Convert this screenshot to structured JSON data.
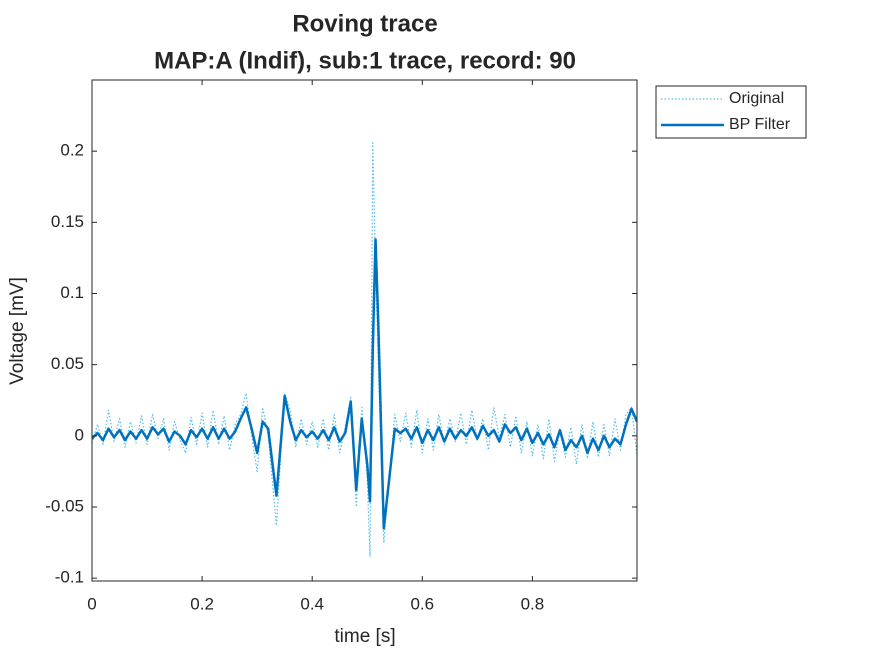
{
  "chart_data": {
    "type": "line",
    "title": "Roving trace",
    "subtitle": "MAP:A (Indif), sub:1 trace, record: 90",
    "x_label": "time [s]",
    "y_label": "Voltage [mV]",
    "xlim": [
      0,
      0.99
    ],
    "ylim": [
      -0.102,
      0.25
    ],
    "xticks": [
      0,
      0.2,
      0.4,
      0.6,
      0.8
    ],
    "yticks": [
      -0.1,
      -0.05,
      0,
      0.05,
      0.1,
      0.15,
      0.2
    ],
    "legend": "outside-top-right",
    "x": [
      0,
      0.01,
      0.02,
      0.03,
      0.04,
      0.05,
      0.06,
      0.07,
      0.08,
      0.09,
      0.1,
      0.11,
      0.12,
      0.13,
      0.14,
      0.15,
      0.16,
      0.17,
      0.18,
      0.19,
      0.2,
      0.21,
      0.22,
      0.23,
      0.24,
      0.25,
      0.26,
      0.27,
      0.28,
      0.29,
      0.3,
      0.31,
      0.32,
      0.335,
      0.35,
      0.36,
      0.37,
      0.38,
      0.39,
      0.4,
      0.41,
      0.42,
      0.43,
      0.44,
      0.45,
      0.46,
      0.47,
      0.48,
      0.49,
      0.5,
      0.505,
      0.51,
      0.515,
      0.52,
      0.53,
      0.54,
      0.55,
      0.56,
      0.57,
      0.58,
      0.59,
      0.6,
      0.61,
      0.62,
      0.63,
      0.64,
      0.65,
      0.66,
      0.67,
      0.68,
      0.69,
      0.7,
      0.71,
      0.72,
      0.73,
      0.74,
      0.75,
      0.76,
      0.77,
      0.78,
      0.79,
      0.8,
      0.81,
      0.82,
      0.83,
      0.84,
      0.85,
      0.86,
      0.87,
      0.88,
      0.89,
      0.9,
      0.91,
      0.92,
      0.93,
      0.94,
      0.95,
      0.96,
      0.97,
      0.98,
      0.99
    ],
    "series": [
      {
        "name": "Original",
        "color": "#4dbeee",
        "dash": "dotted",
        "values": [
          -0.005,
          0.008,
          -0.006,
          0.018,
          -0.004,
          0.012,
          -0.008,
          0.01,
          -0.005,
          0.014,
          -0.006,
          0.015,
          -0.002,
          0.012,
          -0.01,
          0.01,
          -0.003,
          -0.012,
          0.013,
          -0.006,
          0.016,
          -0.008,
          0.018,
          -0.006,
          0.014,
          -0.01,
          0.008,
          0.015,
          0.03,
          0.0,
          -0.025,
          0.02,
          0.0,
          -0.063,
          0.03,
          0.018,
          -0.008,
          0.012,
          -0.006,
          0.01,
          -0.008,
          0.012,
          -0.01,
          0.015,
          -0.012,
          0.006,
          0.027,
          -0.05,
          0.02,
          -0.03,
          -0.085,
          0.207,
          0.12,
          0.05,
          -0.075,
          -0.03,
          0.015,
          -0.004,
          0.016,
          -0.008,
          0.018,
          -0.012,
          0.012,
          -0.01,
          0.015,
          -0.006,
          0.012,
          -0.004,
          0.016,
          -0.006,
          0.018,
          -0.003,
          0.012,
          -0.01,
          0.02,
          -0.002,
          0.015,
          -0.008,
          0.014,
          -0.012,
          0.01,
          -0.014,
          0.008,
          -0.016,
          0.012,
          -0.018,
          0.004,
          -0.015,
          0.006,
          -0.02,
          0.008,
          -0.016,
          0.01,
          -0.015,
          0.008,
          -0.014,
          0.012,
          -0.01,
          0.015,
          0.02,
          -0.014
        ]
      },
      {
        "name": "BP Filter",
        "color": "#0072bd",
        "dash": "solid",
        "values": [
          -0.002,
          0.002,
          -0.003,
          0.005,
          -0.001,
          0.004,
          -0.003,
          0.003,
          -0.002,
          0.004,
          -0.002,
          0.006,
          0.001,
          0.005,
          -0.004,
          0.003,
          0.0,
          -0.006,
          0.004,
          -0.001,
          0.005,
          -0.002,
          0.006,
          -0.002,
          0.005,
          -0.002,
          0.003,
          0.012,
          0.02,
          0.005,
          -0.012,
          0.01,
          0.005,
          -0.042,
          0.028,
          0.01,
          -0.003,
          0.004,
          -0.001,
          0.003,
          -0.002,
          0.004,
          -0.003,
          0.006,
          -0.004,
          0.002,
          0.024,
          -0.038,
          0.012,
          -0.02,
          -0.046,
          0.06,
          0.138,
          0.08,
          -0.065,
          -0.03,
          0.005,
          0.002,
          0.005,
          -0.002,
          0.006,
          -0.005,
          0.004,
          -0.003,
          0.006,
          -0.004,
          0.005,
          -0.002,
          0.004,
          0.0,
          0.006,
          -0.002,
          0.007,
          0.0,
          0.004,
          -0.004,
          0.008,
          0.002,
          0.006,
          -0.003,
          0.005,
          -0.005,
          0.002,
          -0.006,
          0.001,
          -0.008,
          0.004,
          -0.01,
          -0.003,
          -0.008,
          0.0,
          -0.012,
          -0.002,
          -0.01,
          0.0,
          -0.008,
          -0.002,
          -0.006,
          0.008,
          0.019,
          0.01
        ]
      }
    ]
  }
}
